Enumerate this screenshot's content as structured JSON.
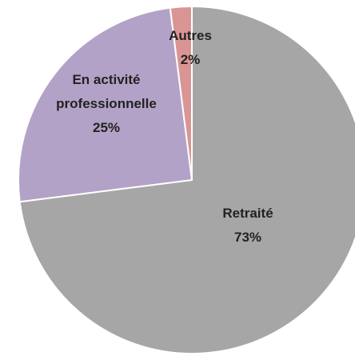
{
  "chart_data": {
    "type": "pie",
    "categories": [
      "Retraité",
      "En activité professionnelle",
      "Autres"
    ],
    "values": [
      73,
      25,
      2
    ],
    "value_labels": [
      "73%",
      "25%",
      "2%"
    ],
    "colors": [
      "#a6a6a6",
      "#b3a2c7",
      "#d99594"
    ]
  }
}
